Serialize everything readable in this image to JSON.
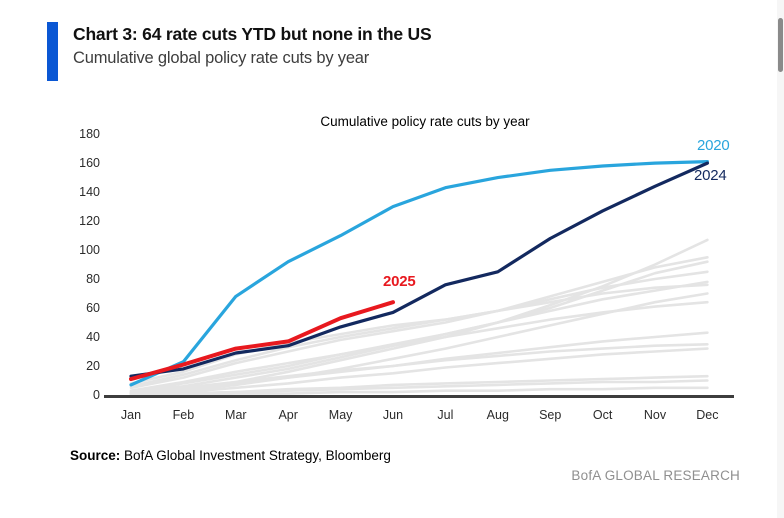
{
  "header": {
    "title": "Chart 3: 64 rate cuts YTD but none in the US",
    "subtitle": "Cumulative global policy rate cuts by year"
  },
  "chart_data": {
    "type": "line",
    "title": "Cumulative policy rate cuts by year",
    "x": [
      "Jan",
      "Feb",
      "Mar",
      "Apr",
      "May",
      "Jun",
      "Jul",
      "Aug",
      "Sep",
      "Oct",
      "Nov",
      "Dec"
    ],
    "ylim": [
      0,
      180
    ],
    "yticks": [
      0,
      20,
      40,
      60,
      80,
      100,
      120,
      140,
      160,
      180
    ],
    "grid": false,
    "legend_position": "end-of-line labels",
    "series": [
      {
        "name": "2020",
        "color": "#29a5dd",
        "line_width": 3.2,
        "values": [
          7,
          23,
          68,
          92,
          110,
          130,
          143,
          150,
          155,
          158,
          160,
          161
        ]
      },
      {
        "name": "2024",
        "color": "#13295f",
        "line_width": 3.2,
        "values": [
          13,
          18,
          29,
          34,
          47,
          57,
          76,
          85,
          108,
          127,
          144,
          160
        ]
      },
      {
        "name": "2025",
        "color": "#e8191f",
        "line_width": 4,
        "values": [
          11,
          21,
          32,
          37,
          53,
          64
        ]
      }
    ],
    "background_series": {
      "description": "unlabeled prior years",
      "color": "#e4e4e4",
      "line_width": 2.6,
      "values": [
        [
          2,
          8,
          14,
          20,
          28,
          35,
          42,
          50,
          62,
          75,
          90,
          107
        ],
        [
          5,
          12,
          22,
          30,
          38,
          44,
          50,
          58,
          68,
          78,
          88,
          95
        ],
        [
          1,
          4,
          9,
          16,
          24,
          32,
          40,
          50,
          60,
          72,
          84,
          92
        ],
        [
          6,
          14,
          24,
          33,
          40,
          46,
          52,
          58,
          66,
          74,
          80,
          85
        ],
        [
          2,
          6,
          12,
          18,
          26,
          34,
          42,
          50,
          58,
          66,
          72,
          78
        ],
        [
          8,
          16,
          28,
          36,
          42,
          48,
          52,
          58,
          64,
          70,
          74,
          76
        ],
        [
          1,
          3,
          7,
          12,
          18,
          25,
          32,
          40,
          48,
          56,
          64,
          70
        ],
        [
          3,
          9,
          16,
          22,
          28,
          34,
          40,
          46,
          52,
          57,
          61,
          64
        ],
        [
          1,
          4,
          8,
          12,
          16,
          20,
          25,
          29,
          33,
          37,
          40,
          43
        ],
        [
          2,
          5,
          9,
          13,
          17,
          20,
          24,
          27,
          30,
          32,
          34,
          35
        ],
        [
          1,
          2,
          5,
          8,
          12,
          15,
          19,
          22,
          25,
          28,
          30,
          32
        ],
        [
          0,
          1,
          2,
          4,
          5,
          7,
          8,
          9,
          10,
          11,
          12,
          13
        ],
        [
          0,
          1,
          2,
          3,
          4,
          5,
          6,
          7,
          8,
          9,
          9,
          10
        ],
        [
          0,
          0,
          1,
          1,
          2,
          2,
          3,
          3,
          4,
          4,
          5,
          5
        ]
      ]
    }
  },
  "source": {
    "label": "Source:",
    "text": " BofA Global Investment Strategy, Bloomberg"
  },
  "brand": "BofA GLOBAL RESEARCH",
  "colors": {
    "accent_bar": "#0a57d4",
    "axis_line": "#3d3d3d",
    "tick_text": "#2b2b2b",
    "background_line": "#e4e4e4",
    "brand_text": "#8f8f8f",
    "series_2020": "#29a5dd",
    "series_2024": "#13295f",
    "series_2025": "#e8191f"
  }
}
